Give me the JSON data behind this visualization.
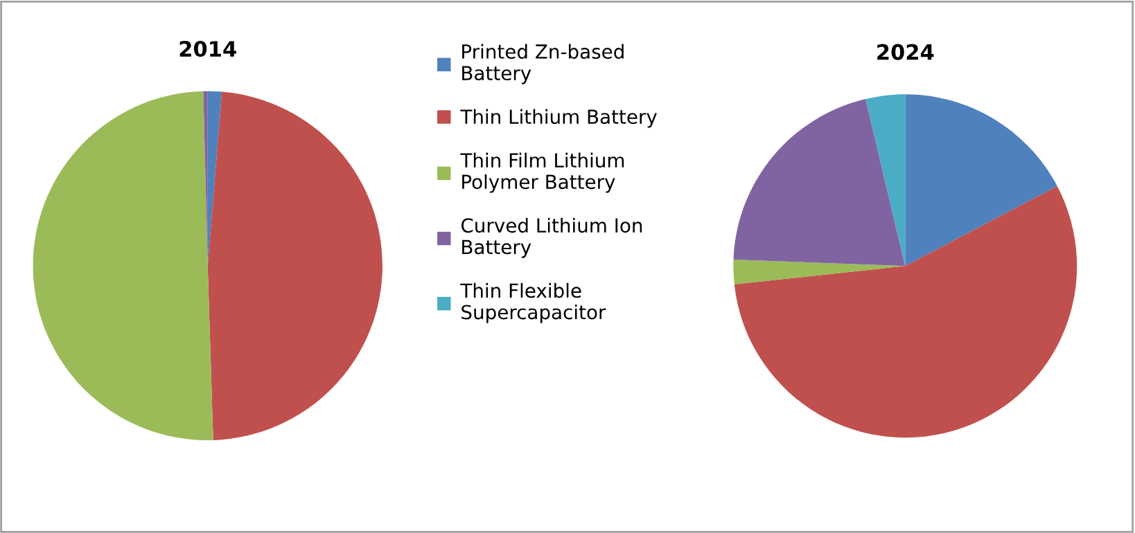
{
  "chart_data": [
    {
      "type": "pie",
      "title": "2014",
      "legend": "right",
      "categories": [
        "Printed Zn-based Battery",
        "Thin Lithium Battery",
        "Thin Film Lithium Polymer Battery",
        "Curved Lithium Ion Battery",
        "Thin Flexible Supercapacitor"
      ],
      "values": [
        1.3,
        48.2,
        50.1,
        0.4,
        0
      ],
      "colors": [
        "#4f81bd",
        "#c0504d",
        "#9bbb59",
        "#8064a2",
        "#4bacc6"
      ]
    },
    {
      "type": "pie",
      "title": "2024",
      "categories": [
        null,
        null,
        null,
        null,
        null
      ],
      "values": [
        17.3,
        56.0,
        2.3,
        20.7,
        3.7
      ],
      "colors": [
        "#4f81bd",
        "#c0504d",
        "#9bbb59",
        "#8064a2",
        "#4bacc6"
      ]
    }
  ]
}
